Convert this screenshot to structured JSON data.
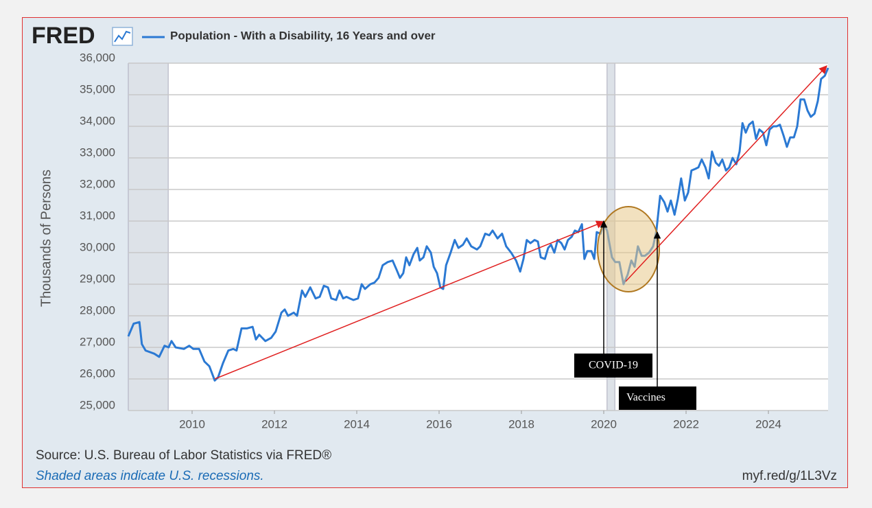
{
  "chart_data": {
    "type": "line",
    "logo": "FRED",
    "y_label": "Thousands of Persons",
    "source": "Source: U.S. Bureau of Labor Statistics via FRED®",
    "note": "Shaded areas indicate U.S. recessions.",
    "link": "myf.red/g/1L3Vz",
    "annotations": [
      "COVID-19",
      "Vaccines"
    ],
    "x": [
      2008.45,
      2008.58,
      2008.72,
      2008.78,
      2008.87,
      2009.08,
      2009.2,
      2009.33,
      2009.43,
      2009.5,
      2009.6,
      2009.8,
      2009.93,
      2010.03,
      2010.17,
      2010.3,
      2010.42,
      2010.55,
      2010.63,
      2010.75,
      2010.88,
      2011.0,
      2011.08,
      2011.2,
      2011.33,
      2011.47,
      2011.55,
      2011.63,
      2011.78,
      2011.92,
      2012.03,
      2012.17,
      2012.25,
      2012.33,
      2012.47,
      2012.55,
      2012.67,
      2012.75,
      2012.87,
      2013.0,
      2013.1,
      2013.2,
      2013.3,
      2013.38,
      2013.5,
      2013.58,
      2013.67,
      2013.75,
      2013.83,
      2013.92,
      2014.03,
      2014.12,
      2014.2,
      2014.33,
      2014.43,
      2014.53,
      2014.63,
      2014.75,
      2014.87,
      2014.97,
      2015.05,
      2015.13,
      2015.2,
      2015.28,
      2015.38,
      2015.47,
      2015.53,
      2015.62,
      2015.7,
      2015.8,
      2015.87,
      2015.95,
      2016.03,
      2016.1,
      2016.17,
      2016.28,
      2016.38,
      2016.47,
      2016.58,
      2016.67,
      2016.78,
      2016.92,
      2017.0,
      2017.12,
      2017.22,
      2017.3,
      2017.42,
      2017.53,
      2017.63,
      2017.75,
      2017.87,
      2017.97,
      2018.05,
      2018.13,
      2018.22,
      2018.32,
      2018.4,
      2018.47,
      2018.57,
      2018.65,
      2018.72,
      2018.8,
      2018.88,
      2018.97,
      2019.05,
      2019.13,
      2019.22,
      2019.3,
      2019.38,
      2019.47,
      2019.53,
      2019.6,
      2019.7,
      2019.77,
      2019.83,
      2019.92,
      2020.0,
      2020.08,
      2020.2,
      2020.28,
      2020.38,
      2020.48,
      2020.58,
      2020.67,
      2020.75,
      2020.83,
      2020.92,
      2021.0,
      2021.1,
      2021.2,
      2021.28,
      2021.37,
      2021.47,
      2021.55,
      2021.63,
      2021.72,
      2021.8,
      2021.88,
      2021.97,
      2022.05,
      2022.13,
      2022.22,
      2022.3,
      2022.38,
      2022.47,
      2022.55,
      2022.63,
      2022.72,
      2022.8,
      2022.88,
      2022.97,
      2023.05,
      2023.13,
      2023.22,
      2023.3,
      2023.37,
      2023.45,
      2023.53,
      2023.62,
      2023.7,
      2023.78,
      2023.87,
      2023.95,
      2024.03,
      2024.12,
      2024.2,
      2024.28,
      2024.37,
      2024.45,
      2024.53,
      2024.62,
      2024.7,
      2024.78,
      2024.87,
      2024.95,
      2025.03,
      2025.12,
      2025.2,
      2025.28,
      2025.37,
      2025.45
    ],
    "series": [
      {
        "name": "Population - With a Disability, 16 Years and over",
        "color": "#2b79d3",
        "values": [
          27350,
          27750,
          27800,
          27100,
          26900,
          26800,
          26700,
          27050,
          27000,
          27200,
          27000,
          26950,
          27050,
          26950,
          26950,
          26550,
          26400,
          25950,
          26050,
          26500,
          26900,
          26950,
          26900,
          27600,
          27600,
          27650,
          27250,
          27400,
          27200,
          27300,
          27500,
          28100,
          28200,
          28000,
          28100,
          28000,
          28800,
          28600,
          28900,
          28550,
          28600,
          28950,
          28900,
          28550,
          28500,
          28800,
          28550,
          28600,
          28550,
          28500,
          28550,
          29000,
          28850,
          29000,
          29050,
          29200,
          29600,
          29700,
          29750,
          29450,
          29200,
          29350,
          29850,
          29600,
          29950,
          30150,
          29750,
          29850,
          30200,
          30000,
          29550,
          29350,
          28900,
          28850,
          29600,
          30000,
          30400,
          30150,
          30250,
          30450,
          30200,
          30100,
          30200,
          30600,
          30550,
          30700,
          30450,
          30600,
          30200,
          30000,
          29750,
          29400,
          29800,
          30400,
          30300,
          30400,
          30350,
          29850,
          29800,
          30150,
          30250,
          30000,
          30400,
          30300,
          30100,
          30400,
          30500,
          30700,
          30650,
          30900,
          29800,
          30050,
          30050,
          29800,
          30650,
          30600,
          30900,
          30700,
          29850,
          29700,
          29700,
          29000,
          29300,
          29750,
          29550,
          30200,
          29900,
          29900,
          30000,
          30200,
          30700,
          31800,
          31600,
          31300,
          31650,
          31200,
          31700,
          32350,
          31650,
          31900,
          32600,
          32650,
          32700,
          32950,
          32700,
          32350,
          33200,
          32850,
          32750,
          32950,
          32600,
          32700,
          33000,
          32800,
          33200,
          34100,
          33800,
          34050,
          34150,
          33600,
          33900,
          33800,
          33400,
          33900,
          34000,
          34000,
          34050,
          33700,
          33350,
          33650,
          33650,
          34000,
          34850,
          34850,
          34500,
          34300,
          34400,
          34800,
          35500,
          35600,
          35850
        ]
      }
    ],
    "xlim": [
      2008.45,
      2025.45
    ],
    "xticks": [
      2010,
      2012,
      2014,
      2016,
      2018,
      2020,
      2022,
      2024
    ],
    "ylim": [
      25000,
      36000
    ],
    "yticks": [
      {
        "value": 25000,
        "label": "25,000"
      },
      {
        "value": 26000,
        "label": "26,000"
      },
      {
        "value": 27000,
        "label": "27,000"
      },
      {
        "value": 28000,
        "label": "28,000"
      },
      {
        "value": 29000,
        "label": "29,000"
      },
      {
        "value": 30000,
        "label": "30,000"
      },
      {
        "value": 31000,
        "label": "31,000"
      },
      {
        "value": 32000,
        "label": "32,000"
      },
      {
        "value": 33000,
        "label": "33,000"
      },
      {
        "value": 34000,
        "label": "34,000"
      },
      {
        "value": 35000,
        "label": "35,000"
      },
      {
        "value": 36000,
        "label": "36,000"
      }
    ],
    "grid": true,
    "recessions": [
      [
        2008.45,
        2009.42
      ],
      [
        2020.08,
        2020.27
      ]
    ]
  }
}
